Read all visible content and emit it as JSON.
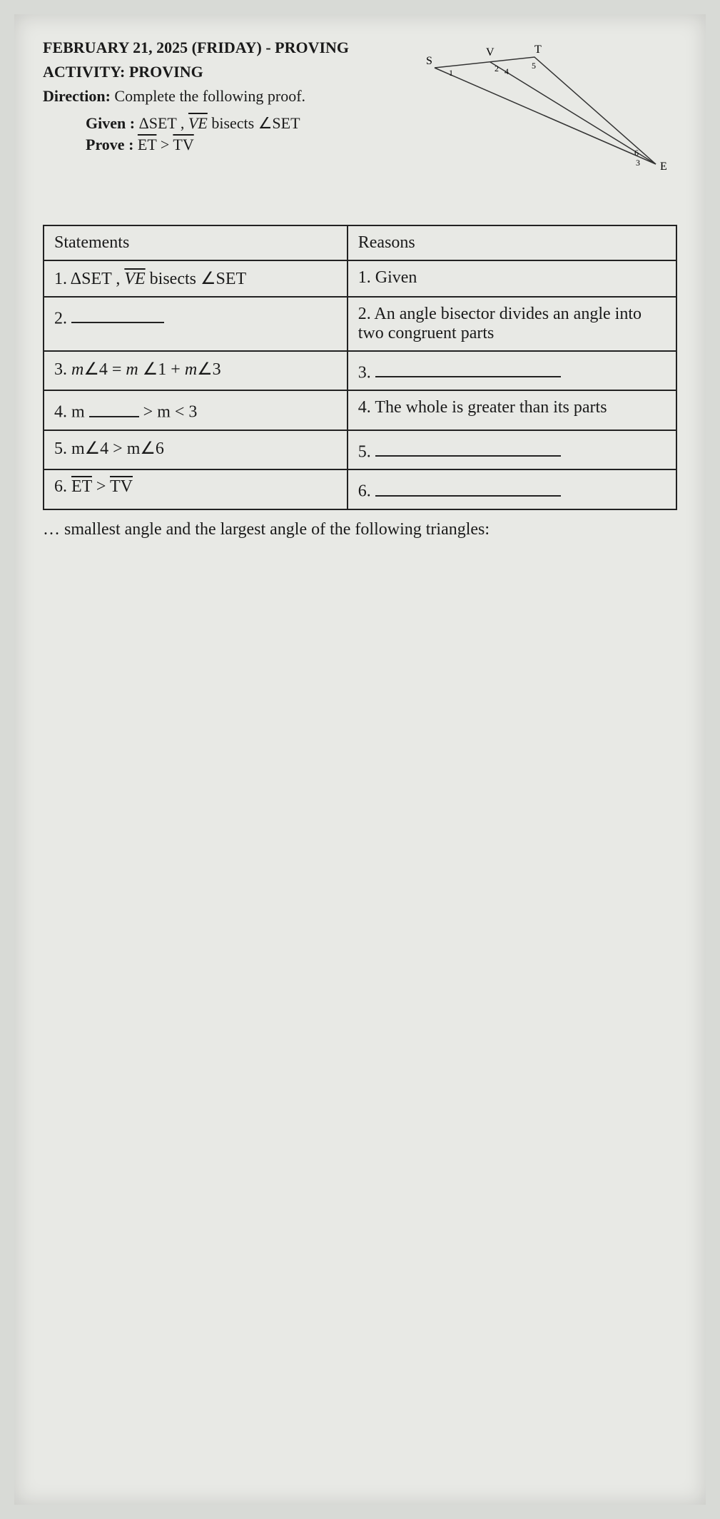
{
  "header": {
    "date_line": "FEBRUARY 21, 2025 (FRIDAY) - PROVING",
    "activity_label": "ACTIVITY:",
    "activity_value": "PROVING",
    "direction_label": "Direction:",
    "direction_value": "Complete the following proof."
  },
  "given": {
    "label": "Given :",
    "text_prefix": "ΔSET ,",
    "bisector": "VE",
    "text_suffix": " bisects ∠SET"
  },
  "prove": {
    "label": "Prove :",
    "seg1": "ET",
    "gt": " > ",
    "seg2": "TV"
  },
  "diagram": {
    "vertices": {
      "S": "S",
      "V": "V",
      "T": "T",
      "E": "E"
    },
    "angle_nums": [
      "1",
      "2",
      "4",
      "5",
      "6",
      "3"
    ],
    "stroke": "#333333",
    "stroke_width": 1.5
  },
  "table": {
    "head_statements": "Statements",
    "head_reasons": "Reasons",
    "rows": [
      {
        "stmt_num": "1.",
        "stmt_html": "ΔSET , <span class='overline italic'>VE</span> bisects ∠SET",
        "reason_num": "1.",
        "reason": "Given"
      },
      {
        "stmt_num": "2.",
        "stmt_html": "<span class='blank'></span>",
        "reason_num": "2.",
        "reason": "An angle bisector divides an angle into two congruent parts"
      },
      {
        "stmt_num": "3.",
        "stmt_html": "<span class='italic'>m</span>∠4 = <span class='italic'>m</span> ∠1 + <span class='italic'>m</span>∠3",
        "reason_num": "3.",
        "reason": "<span class='blank' style='min-width:260px'></span>"
      },
      {
        "stmt_num": "4.",
        "stmt_html": "m <span class='blank' style='min-width:70px'></span> > m &lt; 3",
        "reason_num": "4.",
        "reason": "The whole is greater than its parts"
      },
      {
        "stmt_num": "5.",
        "stmt_html": "m∠4 > m∠6",
        "reason_num": "5.",
        "reason": "<span class='blank' style='min-width:260px'></span>"
      },
      {
        "stmt_num": "6.",
        "stmt_html": "<span class='overline'>ET</span> &gt; <span class='overline'>TV</span>",
        "reason_num": "6.",
        "reason": "<span class='blank' style='min-width:260px'></span>"
      }
    ]
  },
  "footer_question": "… smallest angle and the largest angle of the following triangles:",
  "colors": {
    "page_bg": "#e8e9e5",
    "body_bg": "#d8dad6",
    "border": "#222222",
    "text": "#1a1a1a"
  }
}
